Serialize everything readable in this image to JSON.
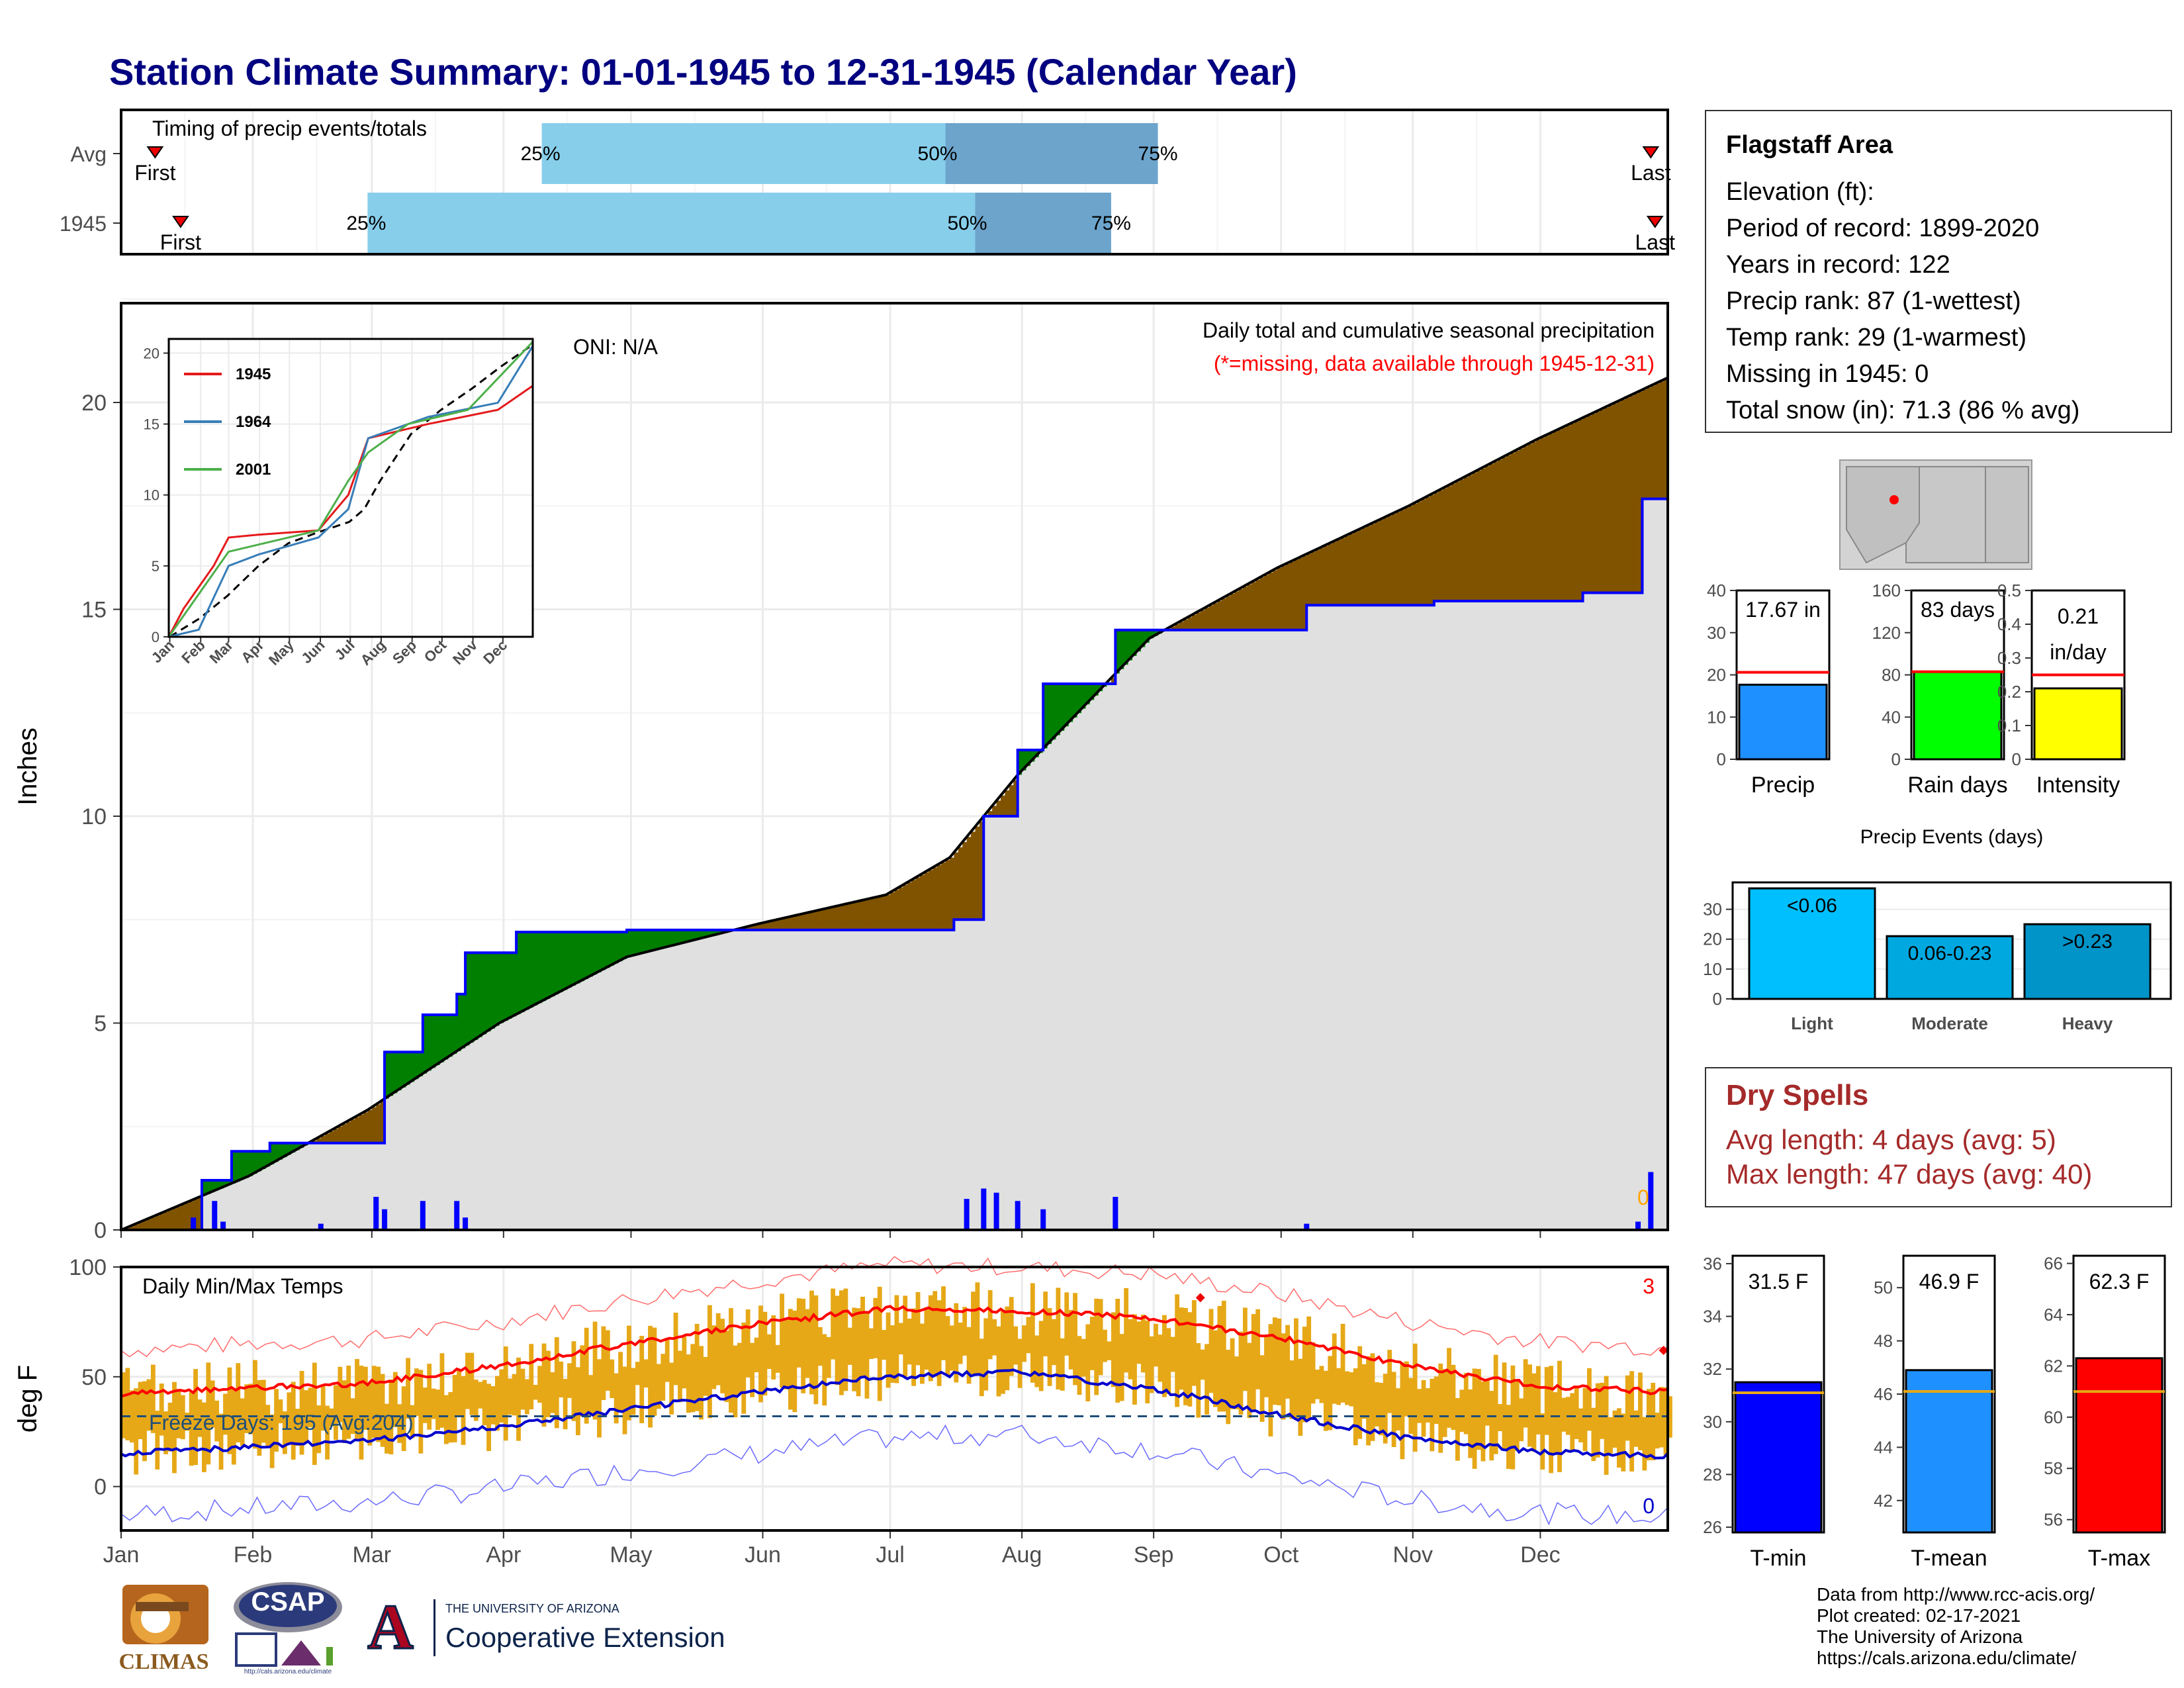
{
  "page_title": "Station Climate Summary: 01-01-1945 to 12-31-1945 (Calendar Year)",
  "station_info": {
    "title": "Flagstaff Area",
    "lines": [
      "Elevation (ft):",
      "Period of record: 1899-2020",
      "Years in record: 122",
      "Precip rank: 87 (1-wettest)",
      "Temp rank: 29 (1-warmest)",
      "Missing in 1945: 0",
      "Total snow (in): 71.3 (86 % avg)"
    ]
  },
  "dry_spells": {
    "title": "Dry Spells",
    "avg_length": "Avg length: 4 days (avg: 5)",
    "max_length": "Max length: 47 days (avg: 40)"
  },
  "credits": {
    "lines": [
      "Data from http://www.rcc-acis.org/",
      "Plot created: 02-17-2021",
      "The University of Arizona",
      "https://cals.arizona.edu/climate/"
    ]
  },
  "logos": {
    "climas": "CLIMAS",
    "csap": "CSAP",
    "csap_url": "http://cals.arizona.edu/climate",
    "ua_letter": "A",
    "ua_small": "THE UNIVERSITY OF ARIZONA",
    "ua_big": "Cooperative Extension"
  },
  "colors": {
    "title": "#000080",
    "avg_bar_light": "#87ceeb",
    "avg_bar_mid": "#6ca4cc",
    "surplus": "#007f00",
    "deficit": "#805300",
    "area_fill": "#e0e0e0",
    "obs_line": "#0000ff",
    "temp_bar": "#e6a817",
    "tmax_line": "#ff0000",
    "tmin_line": "#0000cc",
    "light_events": "#00bfff",
    "moderate_events": "#00a8e0",
    "heavy_events": "#0094c8"
  },
  "chart_data": [
    {
      "id": "timing",
      "type": "bar",
      "title": "Timing of precip events/totals",
      "categories": [
        "Avg",
        "1945"
      ],
      "rows": [
        {
          "label": "Avg",
          "first": "Jan 9",
          "p25": "Apr 10",
          "p50": "Jul 14",
          "p75": "Sep 2",
          "last": "Dec 27",
          "first_label": "First",
          "last_label": "Last"
        },
        {
          "label": "1945",
          "first": "Jan 15",
          "p25": "Feb 28",
          "p50": "Jul 21",
          "p75": "Aug 22",
          "last": "Dec 28",
          "first_label": "First",
          "last_label": "Last"
        }
      ],
      "pct_labels": [
        "25%",
        "50%",
        "75%"
      ]
    },
    {
      "id": "precip",
      "type": "area",
      "ylabel": "Inches",
      "ylim": [
        0,
        22.4
      ],
      "yticks": [
        0,
        5,
        10,
        15,
        20
      ],
      "xticks": [
        "Jan",
        "Feb",
        "Mar",
        "Apr",
        "May",
        "Jun",
        "Jul",
        "Aug",
        "Sep",
        "Oct",
        "Nov",
        "Dec"
      ],
      "annotation_title": "Daily total and cumulative seasonal precipitation",
      "annotation_missing": "(*=missing, data available through 1945-12-31)",
      "oni": "ONI: N/A",
      "missing_count": "0",
      "avg_cumulative": [
        {
          "day": 1,
          "value": 0
        },
        {
          "day": 31,
          "value": 1.3
        },
        {
          "day": 59,
          "value": 2.9
        },
        {
          "day": 90,
          "value": 5.0
        },
        {
          "day": 120,
          "value": 6.6
        },
        {
          "day": 151,
          "value": 7.4
        },
        {
          "day": 181,
          "value": 8.1
        },
        {
          "day": 196,
          "value": 9.0
        },
        {
          "day": 212,
          "value": 11.0
        },
        {
          "day": 243,
          "value": 14.3
        },
        {
          "day": 273,
          "value": 16.0
        },
        {
          "day": 304,
          "value": 17.5
        },
        {
          "day": 334,
          "value": 19.1
        },
        {
          "day": 365,
          "value": 20.6
        }
      ],
      "obs_cumulative": [
        {
          "day": 1,
          "value": 0
        },
        {
          "day": 20,
          "value": 1.2
        },
        {
          "day": 27,
          "value": 1.9
        },
        {
          "day": 36,
          "value": 2.1
        },
        {
          "day": 58,
          "value": 2.1
        },
        {
          "day": 63,
          "value": 4.3
        },
        {
          "day": 72,
          "value": 5.2
        },
        {
          "day": 80,
          "value": 5.7
        },
        {
          "day": 82,
          "value": 6.7
        },
        {
          "day": 94,
          "value": 7.2
        },
        {
          "day": 120,
          "value": 7.25
        },
        {
          "day": 197,
          "value": 7.5
        },
        {
          "day": 204,
          "value": 10.0
        },
        {
          "day": 212,
          "value": 11.6
        },
        {
          "day": 218,
          "value": 13.2
        },
        {
          "day": 235,
          "value": 14.5
        },
        {
          "day": 253,
          "value": 14.5
        },
        {
          "day": 280,
          "value": 15.1
        },
        {
          "day": 310,
          "value": 15.2
        },
        {
          "day": 345,
          "value": 15.4
        },
        {
          "day": 359,
          "value": 17.67
        },
        {
          "day": 365,
          "value": 17.67
        }
      ],
      "daily_bars": [
        {
          "day": 18,
          "value": 0.3
        },
        {
          "day": 23,
          "value": 0.7
        },
        {
          "day": 25,
          "value": 0.2
        },
        {
          "day": 48,
          "value": 0.15
        },
        {
          "day": 61,
          "value": 0.8
        },
        {
          "day": 63,
          "value": 0.5
        },
        {
          "day": 72,
          "value": 0.7
        },
        {
          "day": 80,
          "value": 0.7
        },
        {
          "day": 82,
          "value": 0.3
        },
        {
          "day": 200,
          "value": 0.75
        },
        {
          "day": 204,
          "value": 1.0
        },
        {
          "day": 207,
          "value": 0.9
        },
        {
          "day": 212,
          "value": 0.7
        },
        {
          "day": 218,
          "value": 0.5
        },
        {
          "day": 235,
          "value": 0.8
        },
        {
          "day": 280,
          "value": 0.15
        },
        {
          "day": 358,
          "value": 0.2
        },
        {
          "day": 361,
          "value": 1.4
        }
      ],
      "inset": {
        "yticks": [
          0,
          5,
          10,
          15,
          20
        ],
        "xticks": [
          "Jan",
          "Feb",
          "Mar",
          "Apr",
          "May",
          "Jun",
          "Jul",
          "Aug",
          "Sep",
          "Oct",
          "Nov",
          "Dec"
        ],
        "series": [
          {
            "name": "1945",
            "color": "#e41a1c",
            "values": [
              [
                0,
                0
              ],
              [
                15,
                2
              ],
              [
                45,
                5
              ],
              [
                60,
                7
              ],
              [
                90,
                7.2
              ],
              [
                150,
                7.5
              ],
              [
                180,
                10
              ],
              [
                200,
                14
              ],
              [
                260,
                15
              ],
              [
                330,
                16
              ],
              [
                365,
                17.7
              ]
            ]
          },
          {
            "name": "1964",
            "color": "#377eb8",
            "values": [
              [
                0,
                0
              ],
              [
                30,
                0.5
              ],
              [
                60,
                5
              ],
              [
                90,
                5.8
              ],
              [
                150,
                7
              ],
              [
                180,
                9
              ],
              [
                200,
                14
              ],
              [
                260,
                15.5
              ],
              [
                330,
                16.5
              ],
              [
                365,
                20.5
              ]
            ]
          },
          {
            "name": "2001",
            "color": "#4daf4a",
            "values": [
              [
                0,
                0
              ],
              [
                20,
                2
              ],
              [
                40,
                4
              ],
              [
                60,
                6
              ],
              [
                90,
                6.5
              ],
              [
                150,
                7.5
              ],
              [
                180,
                11
              ],
              [
                200,
                13
              ],
              [
                240,
                15
              ],
              [
                300,
                16
              ],
              [
                365,
                20.8
              ]
            ]
          }
        ]
      }
    },
    {
      "id": "temps",
      "type": "bar",
      "title": "Daily Min/Max Temps",
      "ylabel": "deg F",
      "ylim": [
        -20,
        100
      ],
      "yticks": [
        0,
        50,
        100
      ],
      "xticks": [
        "Jan",
        "Feb",
        "Mar",
        "Apr",
        "May",
        "Jun",
        "Jul",
        "Aug",
        "Sep",
        "Oct",
        "Nov",
        "Dec"
      ],
      "freeze_label": "Freeze Days: 195 (Avg:204)",
      "freeze_line": 32,
      "record_high_count": "3",
      "record_low_count": "0",
      "avg_max": [
        [
          1,
          42
        ],
        [
          31,
          45
        ],
        [
          59,
          47
        ],
        [
          90,
          55
        ],
        [
          120,
          65
        ],
        [
          151,
          74
        ],
        [
          181,
          81
        ],
        [
          212,
          80
        ],
        [
          243,
          77
        ],
        [
          273,
          68
        ],
        [
          304,
          55
        ],
        [
          334,
          46
        ],
        [
          365,
          43
        ]
      ],
      "avg_min": [
        [
          1,
          15
        ],
        [
          31,
          18
        ],
        [
          59,
          21
        ],
        [
          90,
          27
        ],
        [
          120,
          35
        ],
        [
          151,
          43
        ],
        [
          181,
          50
        ],
        [
          212,
          52
        ],
        [
          243,
          45
        ],
        [
          273,
          33
        ],
        [
          304,
          22
        ],
        [
          334,
          16
        ],
        [
          365,
          14
        ]
      ]
    },
    {
      "id": "precip_summary",
      "type": "bar",
      "categories": [
        "Precip",
        "Rain days",
        "Intensity"
      ],
      "panels": [
        {
          "name": "Precip",
          "value": 17.67,
          "avg": 20.6,
          "label": "17.67 in",
          "ylim": [
            0,
            40
          ],
          "yticks": [
            0,
            10,
            20,
            30,
            40
          ],
          "color": "#1e90ff"
        },
        {
          "name": "Rain days",
          "value": 83,
          "avg": 83,
          "label": "83 days",
          "ylim": [
            0,
            160
          ],
          "yticks": [
            0,
            40,
            80,
            120,
            160
          ],
          "color": "#00ff00"
        },
        {
          "name": "Intensity",
          "value": 0.21,
          "avg": 0.25,
          "label": "0.21",
          "label2": "in/day",
          "ylim": [
            0,
            0.5
          ],
          "yticks": [
            0.0,
            0.1,
            0.2,
            0.3,
            0.4,
            0.5
          ],
          "color": "#ffff00"
        }
      ]
    },
    {
      "id": "precip_events",
      "type": "bar",
      "title": "Precip Events (days)",
      "categories": [
        "Light",
        "Moderate",
        "Heavy"
      ],
      "values": [
        37,
        21,
        25
      ],
      "bar_labels": [
        "<0.06",
        "0.06-0.23",
        ">0.23"
      ],
      "ylim": [
        0,
        39
      ],
      "yticks": [
        0,
        10,
        20,
        30
      ]
    },
    {
      "id": "temp_summary",
      "type": "bar",
      "categories": [
        "T-min",
        "T-mean",
        "T-max"
      ],
      "panels": [
        {
          "name": "T-min",
          "value": 31.5,
          "avg": 31.1,
          "label": "31.5 F",
          "ylim": [
            25.8,
            36.3
          ],
          "yticks": [
            26,
            28,
            30,
            32,
            34,
            36
          ],
          "color": "#0000ff"
        },
        {
          "name": "T-mean",
          "value": 46.9,
          "avg": 46.1,
          "label": "46.9 F",
          "ylim": [
            40.8,
            51.2
          ],
          "yticks": [
            42,
            44,
            46,
            48,
            50
          ],
          "color": "#1e90ff"
        },
        {
          "name": "T-max",
          "value": 62.3,
          "avg": 61.0,
          "label": "62.3 F",
          "ylim": [
            55.5,
            66.3
          ],
          "yticks": [
            56,
            58,
            60,
            62,
            64,
            66
          ],
          "color": "#ff0000"
        }
      ]
    }
  ]
}
